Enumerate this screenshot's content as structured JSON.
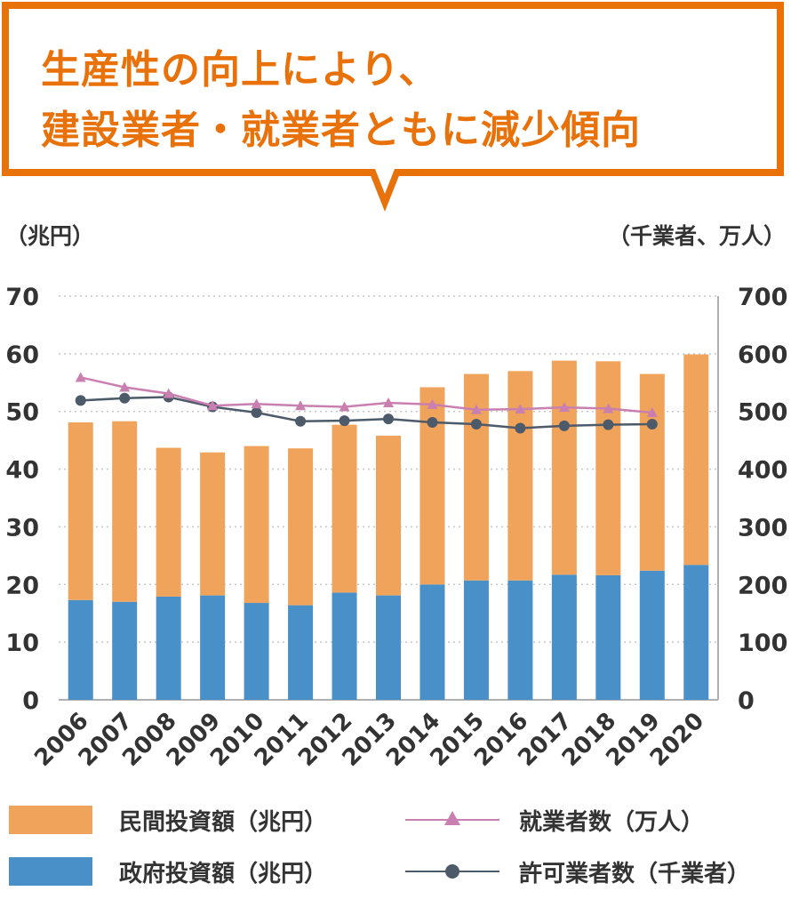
{
  "header": {
    "title_line1": "生産性の向上により、",
    "title_line2": "建設業者・就業者ともに減少傾向"
  },
  "colors": {
    "accent": "#e8710a",
    "private": "#f0a35a",
    "government": "#4a90c8",
    "workers": "#c97fb0",
    "licensed": "#4d5a6a"
  },
  "chart_data": {
    "type": "bar",
    "stacked": true,
    "categories": [
      "2006",
      "2007",
      "2008",
      "2009",
      "2010",
      "2011",
      "2012",
      "2013",
      "2014",
      "2015",
      "2016",
      "2017",
      "2018",
      "2019",
      "2020"
    ],
    "left_axis": {
      "label": "（兆円）",
      "min": 0,
      "max": 70,
      "ticks": [
        "0",
        "10",
        "20",
        "30",
        "40",
        "50",
        "60",
        "70"
      ]
    },
    "right_axis": {
      "label": "（千業者、万人）",
      "min": 0,
      "max": 700,
      "ticks": [
        "0",
        "100",
        "200",
        "300",
        "400",
        "500",
        "600",
        "700"
      ]
    },
    "series": [
      {
        "name": "政府投資額（兆円）",
        "type": "bar",
        "axis": "left",
        "values": [
          17.3,
          17.0,
          17.9,
          18.1,
          16.8,
          16.4,
          18.6,
          18.1,
          20.0,
          20.7,
          20.7,
          21.7,
          21.6,
          22.4,
          23.4
        ]
      },
      {
        "name": "民間投資額（兆円）",
        "type": "bar",
        "axis": "left",
        "values": [
          30.8,
          31.3,
          25.8,
          24.8,
          27.2,
          27.2,
          29.1,
          27.7,
          34.2,
          35.8,
          36.3,
          37.1,
          37.1,
          34.1,
          36.5
        ]
      },
      {
        "name": "就業者数（万人）",
        "type": "line",
        "axis": "right",
        "marker": "triangle",
        "values": [
          559,
          542,
          531,
          510,
          513,
          510,
          508,
          515,
          512,
          503,
          504,
          507,
          505,
          498,
          null
        ]
      },
      {
        "name": "許可業者数（千業者）",
        "type": "line",
        "axis": "right",
        "marker": "circle",
        "values": [
          519,
          523,
          525,
          508,
          498,
          483,
          484,
          487,
          481,
          478,
          471,
          475,
          477,
          478,
          null
        ]
      }
    ],
    "legend_placement": "bottom",
    "grid": true
  }
}
